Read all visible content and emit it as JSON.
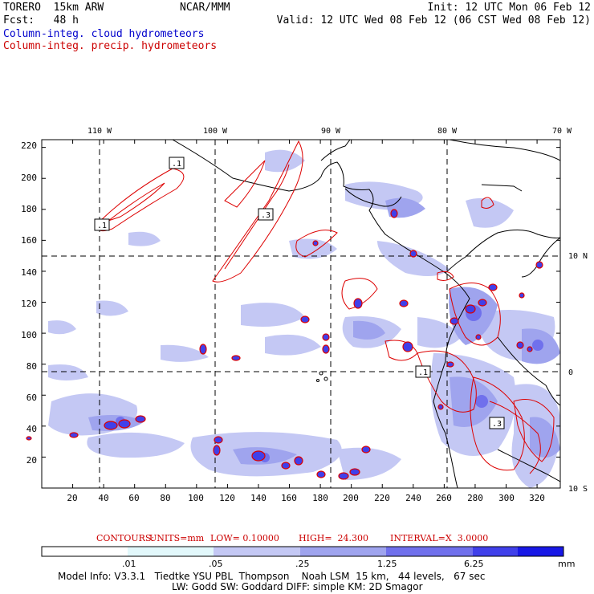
{
  "header": {
    "model": "TORERO  15km ARW",
    "org": "NCAR/MMM",
    "init": "Init: 12 UTC Mon 06 Feb 12",
    "forecast": "Fcst:   48 h",
    "valid": "Valid: 12 UTC Wed 08 Feb 12 (06 CST Wed 08 Feb 12)",
    "field_cloud": "Column-integ. cloud hydrometeors",
    "field_precip": "Column-integ. precip. hydrometeors"
  },
  "map": {
    "lon_labels": [
      "110 W",
      "100 W",
      "90 W",
      "80 W",
      "70 W"
    ],
    "lat_labels": [
      "10 N",
      "0",
      "10 S"
    ],
    "y_ticks": [
      "220",
      "200",
      "180",
      "160",
      "140",
      "120",
      "100",
      "80",
      "60",
      "40",
      "20"
    ],
    "x_ticks": [
      "20",
      "40",
      "60",
      "80",
      "100",
      "120",
      "140",
      "160",
      "180",
      "200",
      "220",
      "240",
      "260",
      "280",
      "300",
      "320"
    ],
    "contour_labels": [
      ".1",
      ".1",
      ".3",
      ".1",
      ".3"
    ],
    "grid_x_range": [
      1,
      335
    ],
    "grid_y_range": [
      1,
      225
    ]
  },
  "contours": {
    "label": "CONTOURS:",
    "units": "UNITS=mm",
    "low": "LOW= 0.10000",
    "high": "HIGH=  24.300",
    "interval": "INTERVAL=X  3.0000"
  },
  "colorbar": {
    "ticks": [
      ".01",
      ".05",
      ".25",
      "1.25",
      "6.25"
    ],
    "unit": "mm",
    "colors": [
      "#ffffff",
      "#e2f8fb",
      "#c4c8f4",
      "#9fa4ee",
      "#7070ec",
      "#4040ea",
      "#1818e6"
    ]
  },
  "footer": {
    "line1": "Model Info: V3.3.1   Tiedtke YSU PBL  Thompson    Noah LSM  15 km,   44 levels,   67 sec",
    "line2": "LW: Godd SW: Goddard DIFF: simple KM: 2D Smagor"
  },
  "colors": {
    "precip": "#dd0000",
    "cloud": "#9fa4ee",
    "coast": "#000000"
  }
}
